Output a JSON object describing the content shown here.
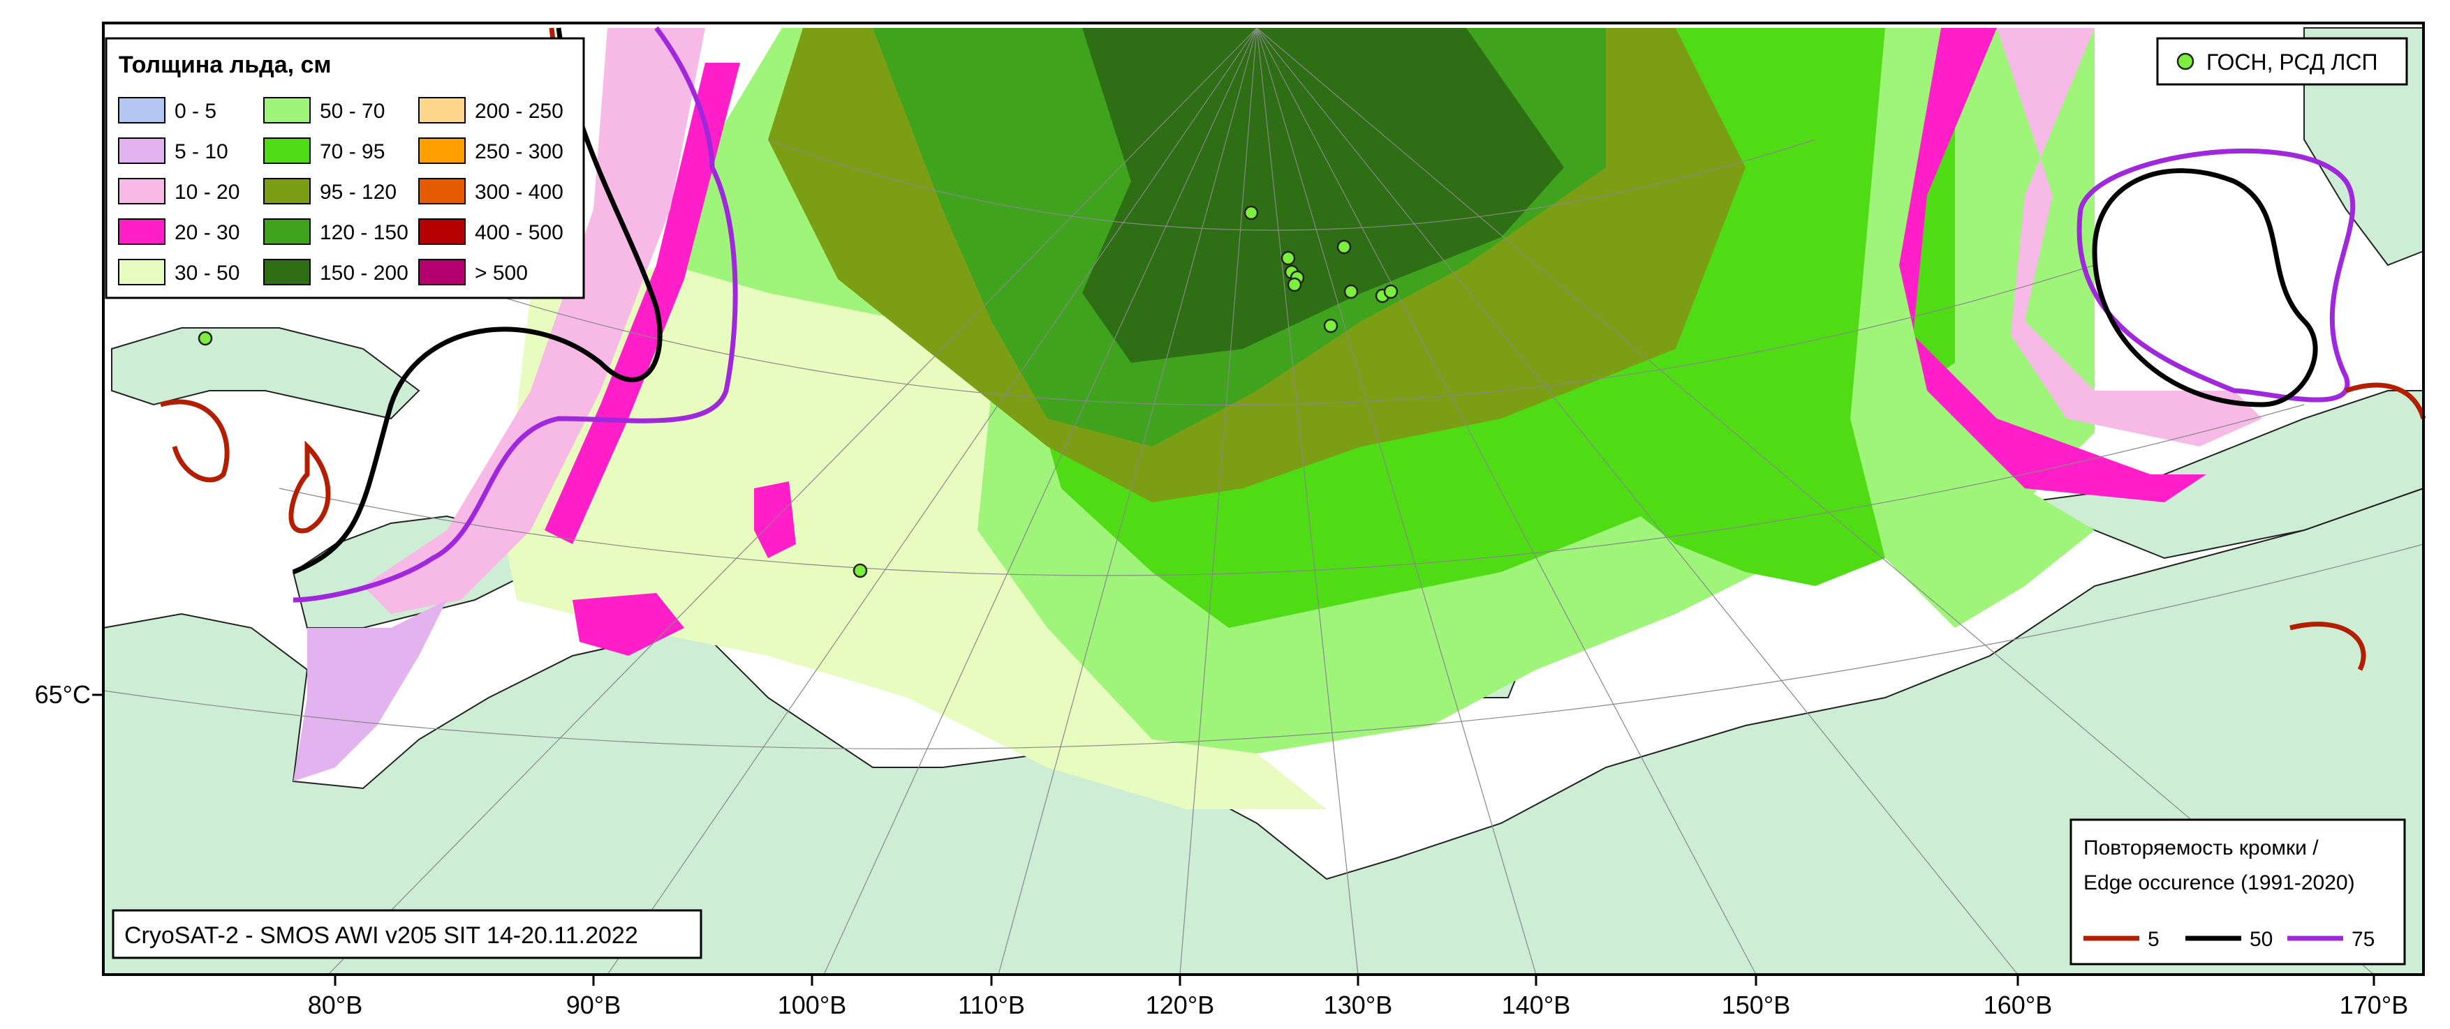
{
  "map": {
    "source_label": "CryoSAT-2 - SMOS AWI v205 SIT 14-20.11.2022",
    "lat_label": "65°С",
    "lon_labels": [
      "80°В",
      "90°В",
      "100°В",
      "110°В",
      "120°В",
      "130°В",
      "140°В",
      "150°В",
      "160°В",
      "170°В"
    ]
  },
  "legend_thickness": {
    "title": "Толщина льда, см",
    "items": [
      {
        "label": "0 - 5",
        "color": "#b3c7f0"
      },
      {
        "label": "5 - 10",
        "color": "#e3b3f0"
      },
      {
        "label": "10 - 20",
        "color": "#f7b9e6"
      },
      {
        "label": "20 - 30",
        "color": "#ff1ec8"
      },
      {
        "label": "30 - 50",
        "color": "#e8fcc0"
      },
      {
        "label": "50 - 70",
        "color": "#9ef57a"
      },
      {
        "label": "70 - 95",
        "color": "#4fdc14"
      },
      {
        "label": "95 - 120",
        "color": "#7c9e14"
      },
      {
        "label": "120 - 150",
        "color": "#3fa31e"
      },
      {
        "label": "150 - 200",
        "color": "#2e6e14"
      },
      {
        "label": "200 - 250",
        "color": "#ffd78c"
      },
      {
        "label": "250 - 300",
        "color": "#ffa000"
      },
      {
        "label": "300 - 400",
        "color": "#e65a00"
      },
      {
        "label": "400 - 500",
        "color": "#b40000"
      },
      {
        "label": "> 500",
        "color": "#b4006e"
      }
    ]
  },
  "legend_stations": {
    "label": "ГОСН, РСД ЛСП",
    "color": "#7cf03c"
  },
  "legend_edge": {
    "title_line1": "Повторяемость кромки /",
    "title_line2": "Edge occurence (1991-2020)",
    "items": [
      {
        "label": "5",
        "color": "#b41e00"
      },
      {
        "label": "50",
        "color": "#000000"
      },
      {
        "label": "75",
        "color": "#a028dc"
      }
    ]
  },
  "colors": {
    "land": "#cdeed5",
    "water": "#ffffff"
  }
}
